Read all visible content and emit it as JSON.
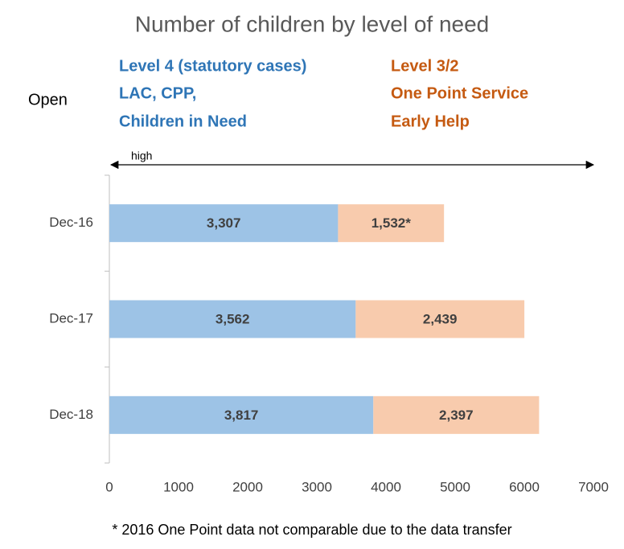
{
  "chart_data": {
    "type": "stacked_barh",
    "title": "Number of children by level of need",
    "categories": [
      "Dec-16",
      "Dec-17",
      "Dec-18"
    ],
    "series": [
      {
        "name": "Level 4 (statutory cases)",
        "color": "#9DC3E6",
        "legend_color": "#2E75B6",
        "values": [
          3307,
          3562,
          3817
        ],
        "value_labels": [
          "3,307",
          "3,562",
          "3,817"
        ]
      },
      {
        "name": "Level 3/2",
        "color": "#F8CBAD",
        "legend_color": "#C55A11",
        "values": [
          1532,
          2439,
          2397
        ],
        "value_labels": [
          "1,532*",
          "2,439",
          "2,397"
        ]
      }
    ],
    "annotations": [
      "LAC, CPP,",
      "Children in Need",
      "One Point Service",
      "Early Help",
      "Open",
      "high",
      "* 2016 One Point data not comparable due to the data transfer"
    ],
    "xlim": [
      0,
      7000
    ],
    "xticks": [
      0,
      1000,
      2000,
      3000,
      4000,
      5000,
      6000,
      7000
    ]
  }
}
